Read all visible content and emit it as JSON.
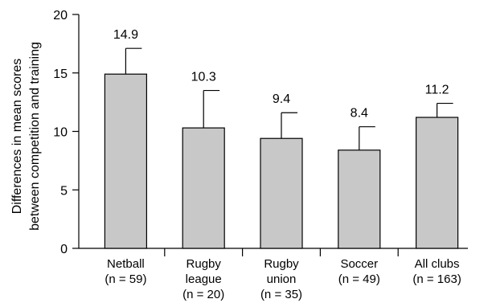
{
  "chart_data": {
    "type": "bar",
    "title": "",
    "xlabel": "",
    "ylabel": [
      "Differences in mean scores",
      "between competition and training"
    ],
    "ylim": [
      0,
      20
    ],
    "yticks": [
      0,
      5,
      10,
      15,
      20
    ],
    "grid": false,
    "legend": "none",
    "bar_color": "#c8c8c8",
    "categories": [
      [
        "Netball",
        "(n = 59)"
      ],
      [
        "Rugby",
        "league",
        "(n = 20)"
      ],
      [
        "Rugby",
        "union",
        "(n = 35)"
      ],
      [
        "Soccer",
        "(n = 49)"
      ],
      [
        "All clubs",
        "(n = 163)"
      ]
    ],
    "values": [
      14.9,
      10.3,
      9.4,
      8.4,
      11.2
    ],
    "error_upper": [
      17.1,
      13.5,
      11.6,
      10.4,
      12.4
    ],
    "value_labels": [
      "14.9",
      "10.3",
      "9.4",
      "8.4",
      "11.2"
    ]
  }
}
